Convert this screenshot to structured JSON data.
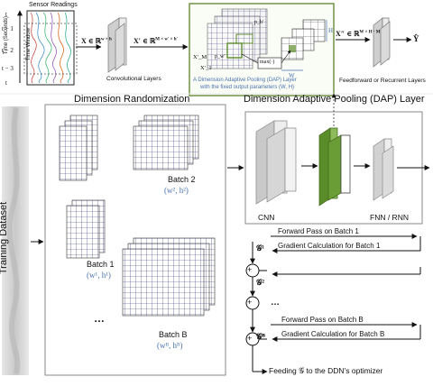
{
  "top": {
    "sensor_readings": "Sensor Readings",
    "time_axis": "Time (Seconds)",
    "time_window": "Time Window",
    "t_ticks": [
      "t",
      "t − 1",
      "t − 2",
      "t − 3",
      "t"
    ],
    "x_in": "X ∈ ℝ",
    "x_in_sup": "w × h",
    "x_prime": "X′ ∈ ℝ",
    "x_prime_sup": "M × w′ × h′",
    "conv_layers": "Convolutional Layers",
    "dap_caption_1": "A Dimension Adaptive Pooling (DAP) Layer",
    "dap_caption_2": "with the fixed output parameters (W, H)",
    "x_m": "X′_M",
    "x_1": "X′_1",
    "p_h": "p_h′",
    "p_w": "p_w′",
    "max_op": "max(·)",
    "H": "H",
    "W": "W",
    "x_dprime": "X″ ∈ ℝ",
    "x_dprime_sup": "W × H · M",
    "y_hat": "Ŷ",
    "ffn_label": "Feedforward or Recurrent Layers"
  },
  "bottom": {
    "training_dataset": "Training Dataset",
    "dimension_randomization": "Dimension Randomization",
    "dap_title": "Dimension Adaptive Pooling (DAP) Layer",
    "batch1": "Batch 1",
    "batch1_param": "(w¹, h¹)",
    "batch2": "Batch 2",
    "batch2_param": "(w², h²)",
    "batchB": "Batch B",
    "batchB_param": "(wᴮ, hᴮ)",
    "ellipsis": "…",
    "cnn": "CNN",
    "fnn_rnn": "FNN / RNN",
    "forward_1": "Forward Pass on Batch 1",
    "grad_1": "Gradient Calculation for Batch 1",
    "g1": "𝒢¹",
    "g2": "𝒢²",
    "gB": "𝒢ᴮ",
    "forward_B": "Forward Pass on Batch B",
    "grad_B": "Gradient Calculation for Batch B",
    "feeding": "Feeding 𝒢 to the DDN’s optimizer",
    "plus": "+"
  },
  "colors": {
    "accent_blue": "#4a72b0",
    "dap_green": "#5b8c2a",
    "dap_frame": "#7a9a52",
    "panel_frame": "#8a8a8a"
  }
}
